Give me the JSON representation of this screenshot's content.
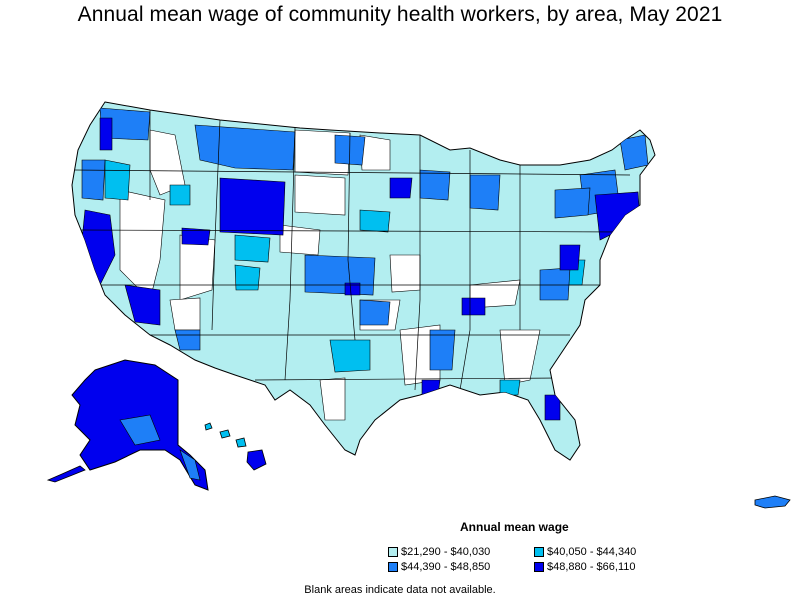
{
  "title": "Annual mean wage of community health workers, by area, May 2021",
  "legend": {
    "title": "Annual mean wage",
    "items": [
      {
        "label": "$21,290 - $40,030",
        "color": "#b3eef0"
      },
      {
        "label": "$40,050 - $44,340",
        "color": "#00bff0"
      },
      {
        "label": "$44,390 - $48,850",
        "color": "#1e7ff7"
      },
      {
        "label": "$48,880 - $66,110",
        "color": "#0000ee"
      }
    ]
  },
  "footnote": "Blank areas indicate data not available."
}
